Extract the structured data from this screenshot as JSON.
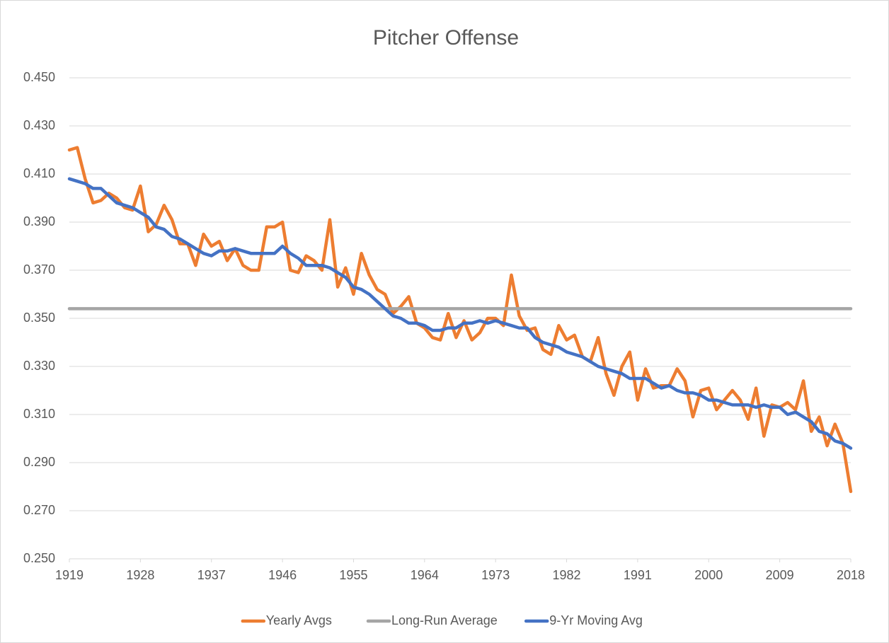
{
  "chart_data": {
    "type": "line",
    "title": "Pitcher Offense",
    "x": [
      1919,
      1920,
      1921,
      1922,
      1923,
      1924,
      1925,
      1926,
      1927,
      1928,
      1929,
      1930,
      1931,
      1932,
      1933,
      1934,
      1935,
      1936,
      1937,
      1938,
      1939,
      1940,
      1941,
      1942,
      1943,
      1944,
      1945,
      1946,
      1947,
      1948,
      1949,
      1950,
      1951,
      1952,
      1953,
      1954,
      1955,
      1956,
      1957,
      1958,
      1959,
      1960,
      1961,
      1962,
      1963,
      1964,
      1965,
      1966,
      1967,
      1968,
      1969,
      1970,
      1971,
      1972,
      1973,
      1974,
      1975,
      1976,
      1977,
      1978,
      1979,
      1980,
      1981,
      1982,
      1983,
      1984,
      1985,
      1986,
      1987,
      1988,
      1989,
      1990,
      1991,
      1992,
      1993,
      1994,
      1995,
      1996,
      1997,
      1998,
      1999,
      2000,
      2001,
      2002,
      2003,
      2004,
      2005,
      2006,
      2007,
      2008,
      2009,
      2010,
      2011,
      2012,
      2013,
      2014,
      2015,
      2016,
      2017,
      2018
    ],
    "xlim": [
      1919,
      2018
    ],
    "xticks": [
      1919,
      1928,
      1937,
      1946,
      1955,
      1964,
      1973,
      1982,
      1991,
      2000,
      2009,
      2018
    ],
    "ylim": [
      0.25,
      0.45
    ],
    "yticks": [
      {
        "value": 0.25,
        "label": "0.250"
      },
      {
        "value": 0.27,
        "label": "0.270"
      },
      {
        "value": 0.29,
        "label": "0.290"
      },
      {
        "value": 0.31,
        "label": "0.310"
      },
      {
        "value": 0.33,
        "label": "0.330"
      },
      {
        "value": 0.35,
        "label": "0.350"
      },
      {
        "value": 0.37,
        "label": "0.370"
      },
      {
        "value": 0.39,
        "label": "0.390"
      },
      {
        "value": 0.41,
        "label": "0.410"
      },
      {
        "value": 0.43,
        "label": "0.430"
      },
      {
        "value": 0.45,
        "label": "0.450"
      }
    ],
    "grid": true,
    "legend": "bottom",
    "series": [
      {
        "name": "Yearly Avgs",
        "color": "#ed7d31",
        "values": [
          0.42,
          0.421,
          0.408,
          0.398,
          0.399,
          0.402,
          0.4,
          0.396,
          0.395,
          0.405,
          0.386,
          0.389,
          0.397,
          0.391,
          0.381,
          0.381,
          0.372,
          0.385,
          0.38,
          0.382,
          0.374,
          0.379,
          0.372,
          0.37,
          0.37,
          0.388,
          0.388,
          0.39,
          0.37,
          0.369,
          0.376,
          0.374,
          0.37,
          0.391,
          0.363,
          0.371,
          0.36,
          0.377,
          0.368,
          0.362,
          0.36,
          0.352,
          0.355,
          0.359,
          0.348,
          0.346,
          0.342,
          0.341,
          0.352,
          0.342,
          0.349,
          0.341,
          0.344,
          0.35,
          0.35,
          0.347,
          0.368,
          0.351,
          0.345,
          0.346,
          0.337,
          0.335,
          0.347,
          0.341,
          0.343,
          0.334,
          0.332,
          0.342,
          0.327,
          0.318,
          0.33,
          0.336,
          0.316,
          0.329,
          0.321,
          0.322,
          0.322,
          0.329,
          0.324,
          0.309,
          0.32,
          0.321,
          0.312,
          0.316,
          0.32,
          0.316,
          0.308,
          0.321,
          0.301,
          0.314,
          0.313,
          0.315,
          0.312,
          0.324,
          0.303,
          0.309,
          0.297,
          0.306,
          0.298,
          0.278
        ]
      },
      {
        "name": "Long-Run Average",
        "color": "#a5a5a5",
        "values": [
          0.354,
          0.354,
          0.354,
          0.354,
          0.354,
          0.354,
          0.354,
          0.354,
          0.354,
          0.354,
          0.354,
          0.354,
          0.354,
          0.354,
          0.354,
          0.354,
          0.354,
          0.354,
          0.354,
          0.354,
          0.354,
          0.354,
          0.354,
          0.354,
          0.354,
          0.354,
          0.354,
          0.354,
          0.354,
          0.354,
          0.354,
          0.354,
          0.354,
          0.354,
          0.354,
          0.354,
          0.354,
          0.354,
          0.354,
          0.354,
          0.354,
          0.354,
          0.354,
          0.354,
          0.354,
          0.354,
          0.354,
          0.354,
          0.354,
          0.354,
          0.354,
          0.354,
          0.354,
          0.354,
          0.354,
          0.354,
          0.354,
          0.354,
          0.354,
          0.354,
          0.354,
          0.354,
          0.354,
          0.354,
          0.354,
          0.354,
          0.354,
          0.354,
          0.354,
          0.354,
          0.354,
          0.354,
          0.354,
          0.354,
          0.354,
          0.354,
          0.354,
          0.354,
          0.354,
          0.354,
          0.354,
          0.354,
          0.354,
          0.354,
          0.354,
          0.354,
          0.354,
          0.354,
          0.354,
          0.354,
          0.354,
          0.354,
          0.354,
          0.354,
          0.354,
          0.354,
          0.354,
          0.354,
          0.354,
          0.354
        ]
      },
      {
        "name": "9-Yr Moving Avg",
        "color": "#4472c4",
        "values": [
          0.408,
          0.407,
          0.406,
          0.404,
          0.404,
          0.401,
          0.398,
          0.397,
          0.396,
          0.394,
          0.392,
          0.388,
          0.387,
          0.384,
          0.383,
          0.381,
          0.379,
          0.377,
          0.376,
          0.378,
          0.378,
          0.379,
          0.378,
          0.377,
          0.377,
          0.377,
          0.377,
          0.38,
          0.377,
          0.375,
          0.372,
          0.372,
          0.372,
          0.371,
          0.369,
          0.367,
          0.363,
          0.362,
          0.36,
          0.357,
          0.354,
          0.351,
          0.35,
          0.348,
          0.348,
          0.347,
          0.345,
          0.345,
          0.346,
          0.346,
          0.348,
          0.348,
          0.349,
          0.348,
          0.349,
          0.348,
          0.347,
          0.346,
          0.346,
          0.342,
          0.34,
          0.339,
          0.338,
          0.336,
          0.335,
          0.334,
          0.332,
          0.33,
          0.329,
          0.328,
          0.327,
          0.325,
          0.325,
          0.325,
          0.323,
          0.321,
          0.322,
          0.32,
          0.319,
          0.319,
          0.318,
          0.316,
          0.316,
          0.315,
          0.314,
          0.314,
          0.314,
          0.313,
          0.314,
          0.313,
          0.313,
          0.31,
          0.311,
          0.309,
          0.307,
          0.303,
          0.302,
          0.299,
          0.298,
          0.296
        ]
      }
    ]
  }
}
